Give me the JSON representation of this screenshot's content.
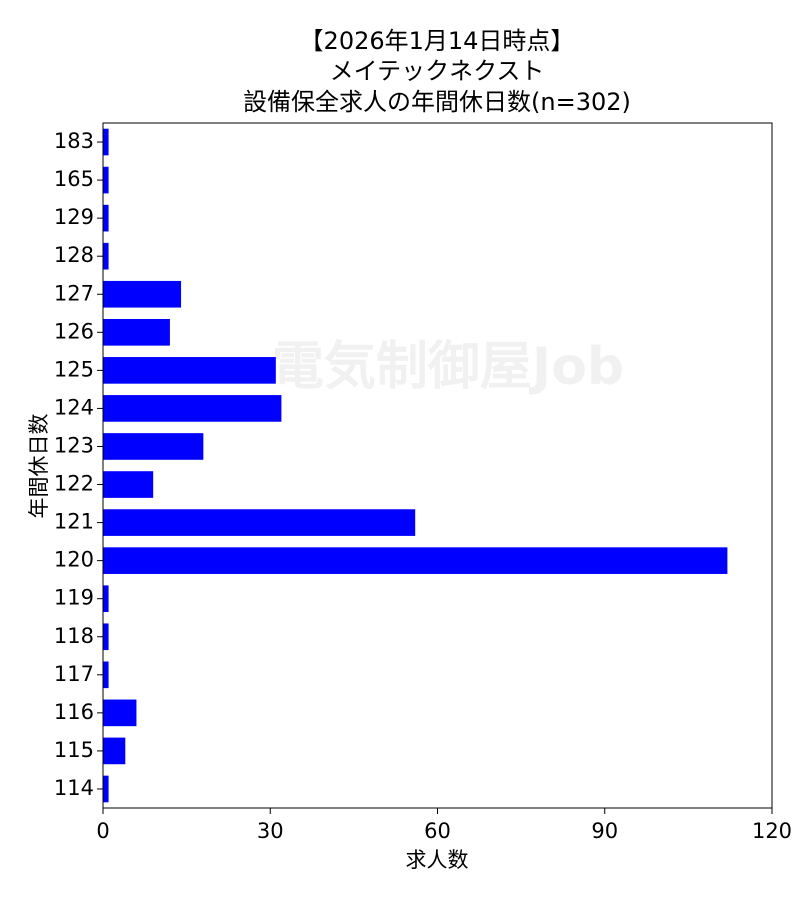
{
  "chart_data": {
    "type": "barh",
    "title": [
      "【2026年1月14日時点】",
      "メイテックネクスト",
      "設備保全求人の年間休日数(n=302)"
    ],
    "xlabel": "求人数",
    "ylabel": "年間休日数",
    "watermark": "電気制御屋Job",
    "categories": [
      "114",
      "115",
      "116",
      "117",
      "118",
      "119",
      "120",
      "121",
      "122",
      "123",
      "124",
      "125",
      "126",
      "127",
      "128",
      "129",
      "165",
      "183"
    ],
    "values": [
      1,
      4,
      6,
      1,
      1,
      1,
      112,
      56,
      9,
      18,
      32,
      31,
      12,
      14,
      1,
      1,
      1,
      1
    ],
    "color": "#0000ff",
    "xlim": [
      0,
      120
    ],
    "xticks": [
      0,
      30,
      60,
      90,
      120
    ]
  }
}
